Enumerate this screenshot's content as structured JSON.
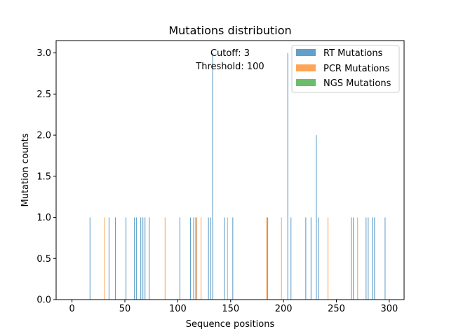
{
  "chart_data": {
    "type": "bar",
    "title": "Mutations distribution",
    "xlabel": "Sequence positions",
    "ylabel": "Mutation counts",
    "xlim": [
      -15,
      314
    ],
    "ylim": [
      0,
      3.15
    ],
    "xticks": [
      0,
      50,
      100,
      150,
      200,
      250,
      300
    ],
    "yticks": [
      0.0,
      0.5,
      1.0,
      1.5,
      2.0,
      2.5,
      3.0
    ],
    "xtick_labels": [
      "0",
      "50",
      "100",
      "150",
      "200",
      "250",
      "300"
    ],
    "ytick_labels": [
      "0.0",
      "0.5",
      "1.0",
      "1.5",
      "2.0",
      "2.5",
      "3.0"
    ],
    "legend_position": "top-right",
    "grid": false,
    "annotations": [
      "Cutoff: 3",
      "Threshold: 100"
    ],
    "series": [
      {
        "name": "RT Mutations",
        "color": "#1f77b4",
        "x": [
          17,
          35,
          41,
          51,
          59,
          61,
          65,
          67,
          69,
          73,
          102,
          112,
          115,
          117,
          129,
          131,
          133,
          144,
          152,
          185,
          204,
          207,
          221,
          226,
          231,
          233,
          264,
          266,
          278,
          280,
          284,
          286,
          296
        ],
        "values": [
          1,
          1,
          1,
          1,
          1,
          1,
          1,
          1,
          1,
          1,
          1,
          1,
          1,
          1,
          1,
          1,
          3,
          1,
          1,
          1,
          3,
          1,
          1,
          1,
          2,
          1,
          1,
          1,
          1,
          1,
          1,
          1,
          1
        ]
      },
      {
        "name": "PCR Mutations",
        "color": "#ff7f0e",
        "x": [
          31,
          88,
          118,
          122,
          147,
          184,
          198,
          242,
          270
        ],
        "values": [
          1,
          1,
          1,
          1,
          1,
          1,
          1,
          1,
          1
        ]
      },
      {
        "name": "NGS Mutations",
        "color": "#2ca02c",
        "x": [],
        "values": []
      }
    ]
  }
}
